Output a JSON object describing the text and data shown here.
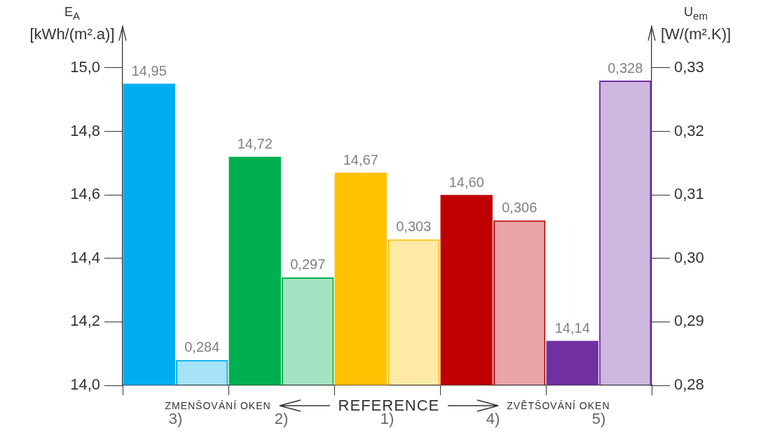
{
  "chart_data": {
    "type": "bar",
    "categories": [
      "3)",
      "2)",
      "1)",
      "4)",
      "5)"
    ],
    "ylabel": "E$_{A}$ [kWh/(m².a)]",
    "y2label": "U$_{em}$ [W/(m².K)]",
    "series": [
      {
        "colors": [
          "#00aeef",
          "#00b050",
          "#ffc000",
          "#c00000",
          "#7030a0"
        ],
        "values": [
          14.95,
          14.72,
          14.67,
          14.6,
          14.14
        ],
        "value_labels": [
          "14,95",
          "14,72",
          "14,67",
          "14,60",
          "14,14"
        ]
      },
      {
        "axis": "y2",
        "colors": [
          "#00aeef",
          "#00b050",
          "#ffc000",
          "#c00000",
          "#7030a0"
        ],
        "values": [
          0.284,
          0.297,
          0.303,
          0.306,
          0.328
        ],
        "value_labels": [
          "0,284",
          "0,297",
          "0,303",
          "0,306",
          "0,328"
        ]
      }
    ],
    "ylim": [
      14.0,
      15.13
    ],
    "yticks": [
      {
        "value": 14.0,
        "label": "14,0"
      },
      {
        "value": 14.2,
        "label": "14,2"
      },
      {
        "value": 14.4,
        "label": "14,4"
      },
      {
        "value": 14.6,
        "label": "14,6"
      },
      {
        "value": 14.8,
        "label": "14,8"
      },
      {
        "value": 15.0,
        "label": "15,0"
      }
    ],
    "y2lim": [
      0.28,
      0.3365
    ],
    "y2ticks": [
      {
        "value": 0.28,
        "label": "0,28"
      },
      {
        "value": 0.29,
        "label": "0,29"
      },
      {
        "value": 0.3,
        "label": "0,30"
      },
      {
        "value": 0.31,
        "label": "0,31"
      },
      {
        "value": 0.32,
        "label": "0,32"
      },
      {
        "value": 0.33,
        "label": "0,33"
      }
    ],
    "annotations": [
      "ZMENŠOVÁNÍ OKEN",
      "REFERENCE",
      "ZVĚTŠOVÁNÍ OKEN"
    ],
    "grid": false,
    "legend": false
  }
}
